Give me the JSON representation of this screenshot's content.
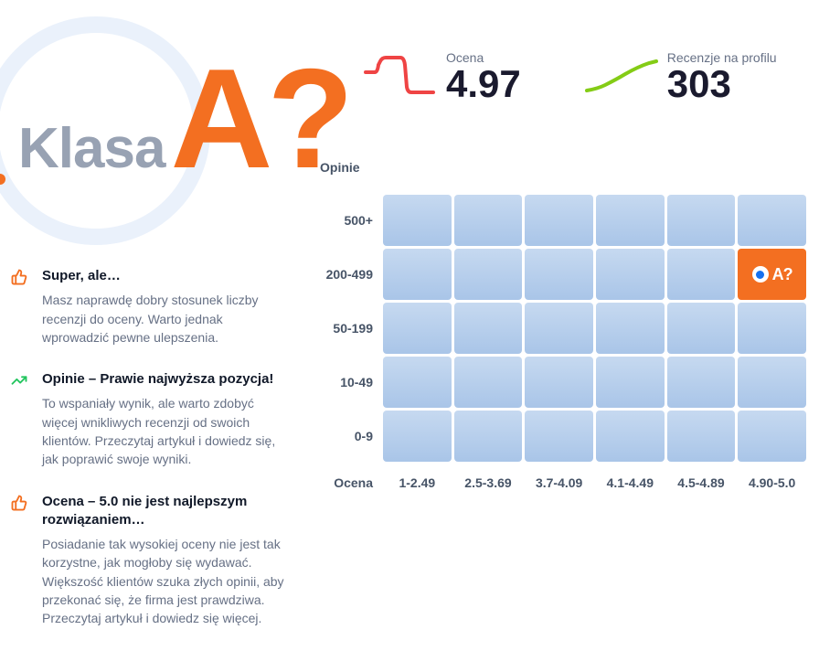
{
  "hero": {
    "klasa_label": "Klasa",
    "grade": "A?"
  },
  "metrics": {
    "score": {
      "label": "Ocena",
      "value": "4.97",
      "stroke": "#ef4444"
    },
    "reviews": {
      "label": "Recenzje na profilu",
      "value": "303",
      "stroke": "#84cc16"
    }
  },
  "insights": [
    {
      "icon": "thumbs-up",
      "icon_color": "#f36f21",
      "title": "Super, ale…",
      "body": "Masz naprawdę dobry stosunek liczby recenzji do oceny. Warto jednak wprowadzić pewne ulepszenia."
    },
    {
      "icon": "trend-up",
      "icon_color": "#22c55e",
      "title": "Opinie – Prawie najwyższa pozycja!",
      "body": "To wspaniały wynik, ale warto zdobyć więcej wnikliwych recenzji od swoich klientów. Przeczytaj artykuł i dowiedz się, jak poprawić swoje wyniki."
    },
    {
      "icon": "thumbs-up",
      "icon_color": "#f36f21",
      "title": "Ocena – 5.0 nie jest najlepszym rozwiązaniem…",
      "body": "Posiadanie tak wysokiej oceny nie jest tak korzystne, jak mogłoby się wydawać. Większość klientów szuka złych opinii, aby przekonać się, że firma jest prawdziwa. Przeczytaj artykuł i dowiedz się więcej."
    }
  ],
  "chart": {
    "y_axis_title": "Opinie",
    "x_axis_title": "Ocena",
    "rows": [
      "500+",
      "200-499",
      "50-199",
      "10-49",
      "0-9"
    ],
    "cols": [
      "1-2.49",
      "2.5-3.69",
      "3.7-4.09",
      "4.1-4.49",
      "4.5-4.89",
      "4.90-5.0"
    ],
    "active": {
      "row": 1,
      "col": 5,
      "label": "A?"
    },
    "cell_color_top": "#c6d9f0",
    "cell_color_bottom": "#a9c5e8",
    "active_color": "#f36f21",
    "marker_inner": "#1570ef"
  },
  "colors": {
    "accent": "#f36f21",
    "muted": "#98a2b3",
    "text": "#475467",
    "heading": "#101828"
  }
}
